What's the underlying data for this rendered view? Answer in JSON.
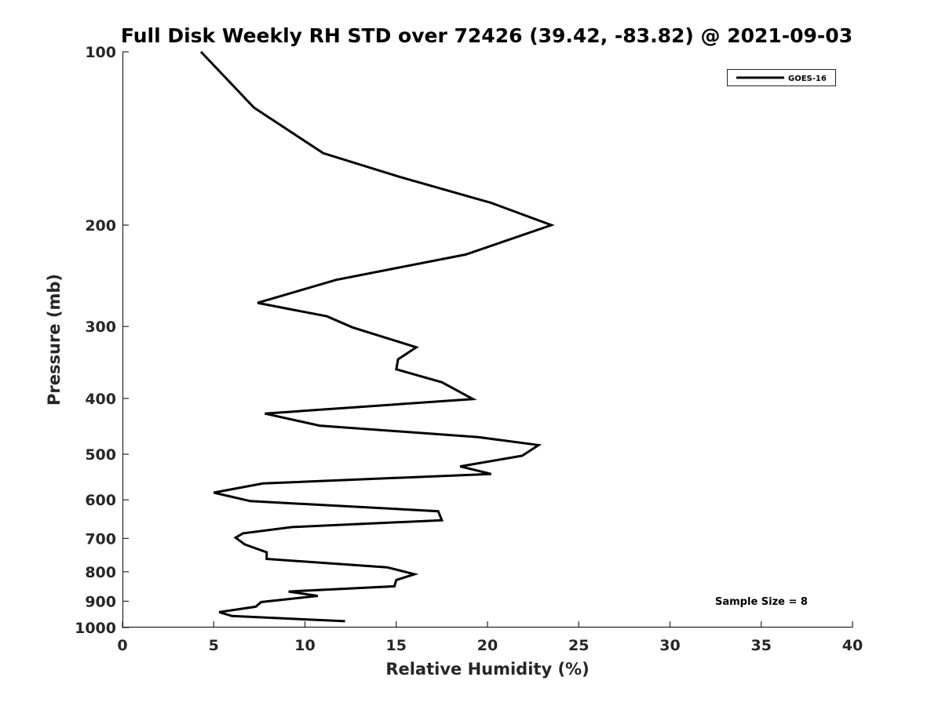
{
  "chart_data": {
    "type": "line",
    "title": "Full Disk Weekly RH STD over 72426 (39.42, -83.82) @ 2021-09-03",
    "xlabel": "Relative Humidity (%)",
    "ylabel": "Pressure (mb)",
    "xlim": [
      0,
      40
    ],
    "ylim": [
      100,
      1000
    ],
    "y_scale": "log",
    "y_reversed": true,
    "grid": false,
    "legend_position": "top-right",
    "x_ticks": [
      "0",
      "5",
      "10",
      "15",
      "20",
      "25",
      "30",
      "35",
      "40"
    ],
    "y_ticks": [
      "100",
      "200",
      "300",
      "400",
      "500",
      "600",
      "700",
      "800",
      "900",
      "1000"
    ],
    "annotation": "Sample Size = 8",
    "series": [
      {
        "name": "GOES-16",
        "color": "#000000",
        "points": [
          [
            4.3,
            100
          ],
          [
            7.2,
            125
          ],
          [
            11.0,
            150
          ],
          [
            15.2,
            165
          ],
          [
            20.2,
            183
          ],
          [
            23.5,
            200
          ],
          [
            18.8,
            225
          ],
          [
            11.7,
            249
          ],
          [
            7.4,
            273
          ],
          [
            11.2,
            288
          ],
          [
            12.6,
            301
          ],
          [
            16.1,
            326
          ],
          [
            15.1,
            342
          ],
          [
            15.0,
            356
          ],
          [
            17.5,
            375
          ],
          [
            19.2,
            401
          ],
          [
            7.8,
            425
          ],
          [
            10.8,
            446
          ],
          [
            19.5,
            467
          ],
          [
            22.8,
            482
          ],
          [
            21.9,
            503
          ],
          [
            18.5,
            525
          ],
          [
            20.2,
            541
          ],
          [
            7.7,
            562
          ],
          [
            5.0,
            583
          ],
          [
            7.0,
            603
          ],
          [
            17.3,
            628
          ],
          [
            17.5,
            651
          ],
          [
            9.3,
            669
          ],
          [
            6.6,
            686
          ],
          [
            6.2,
            698
          ],
          [
            6.7,
            717
          ],
          [
            7.9,
            740
          ],
          [
            7.9,
            760
          ],
          [
            14.5,
            786
          ],
          [
            16.0,
            808
          ],
          [
            15.0,
            827
          ],
          [
            14.9,
            848
          ],
          [
            9.1,
            866
          ],
          [
            10.7,
            881
          ],
          [
            7.6,
            903
          ],
          [
            7.3,
            920
          ],
          [
            5.3,
            940
          ],
          [
            6.0,
            955
          ],
          [
            12.2,
            975
          ]
        ]
      }
    ]
  }
}
